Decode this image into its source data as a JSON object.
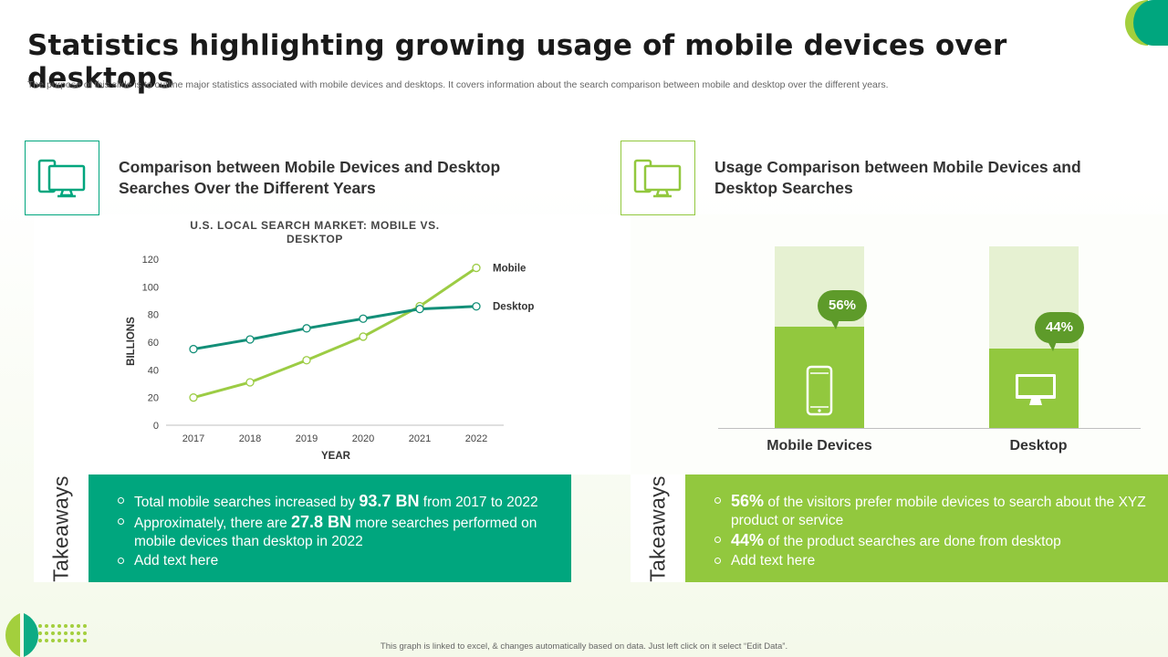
{
  "header": {
    "title": "Statistics highlighting growing usage of mobile devices over desktops",
    "subtitle": "The purpose of this slide is to outline major statistics associated with mobile devices and desktops. It covers information about the search comparison between mobile and desktop over the different years."
  },
  "colors": {
    "teal": "#00a67e",
    "teal_dark": "#138f78",
    "green": "#92c83e",
    "green_dark": "#5e9b2a",
    "green_light": "#e6f1d2"
  },
  "left_panel": {
    "icon": "mobile-desktop-icon",
    "title": "Comparison between Mobile Devices and Desktop Searches Over the Different Years",
    "takeaways_label": "Takeaways",
    "takeaways": [
      {
        "pre": "Total mobile searches increased by ",
        "bold": "93.7 BN",
        "post": " from 2017 to 2022"
      },
      {
        "pre": "Approximately, there are ",
        "bold": "27.8 BN",
        "post": " more searches performed on mobile devices than desktop in 2022"
      },
      {
        "pre": "Add text here",
        "bold": "",
        "post": ""
      }
    ]
  },
  "right_panel": {
    "icon": "mobile-desktop-icon",
    "title": "Usage Comparison between Mobile Devices and Desktop Searches",
    "takeaways_label": "Takeaways",
    "takeaways": [
      {
        "pre": "",
        "bold": "56%",
        "post": " of the visitors prefer mobile devices to search about the XYZ product or service"
      },
      {
        "pre": "",
        "bold": "44%",
        "post": " of the product searches are done from desktop"
      },
      {
        "pre": "Add text here",
        "bold": "",
        "post": ""
      }
    ]
  },
  "chart_data": [
    {
      "type": "line",
      "title": "U.S. LOCAL SEARCH MARKET: MOBILE VS. DESKTOP",
      "xlabel": "YEAR",
      "ylabel": "BILLIONS",
      "x": [
        "2017",
        "2018",
        "2019",
        "2020",
        "2021",
        "2022"
      ],
      "ylim": [
        0,
        120
      ],
      "yticks": [
        0,
        20,
        40,
        60,
        80,
        100,
        120
      ],
      "legend": "right-end labels",
      "series": [
        {
          "name": "Mobile",
          "color": "#9ccc44",
          "values": [
            20,
            31,
            47,
            64,
            86,
            113.7
          ]
        },
        {
          "name": "Desktop",
          "color": "#138f78",
          "values": [
            55,
            62,
            70,
            77,
            84,
            85.9
          ]
        }
      ]
    },
    {
      "type": "bar",
      "title": "Usage Comparison between Mobile Devices and Desktop Searches",
      "categories": [
        "Mobile Devices",
        "Desktop"
      ],
      "values": [
        56,
        44
      ],
      "value_labels": [
        "56%",
        "44%"
      ],
      "icons": [
        "smartphone-icon",
        "monitor-icon"
      ],
      "ylim": [
        0,
        100
      ]
    }
  ],
  "footer": {
    "note": "This graph is linked to excel, & changes automatically based on data. Just left click on it select “Edit Data”."
  }
}
